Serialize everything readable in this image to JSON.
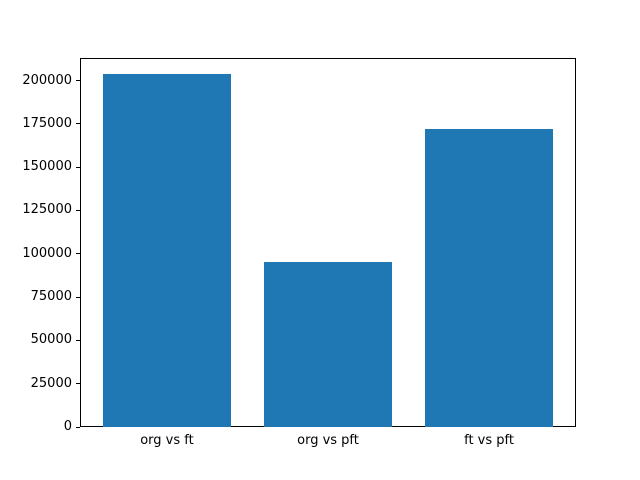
{
  "colors": {
    "bar": "#1f77b4",
    "axis": "#000000",
    "background": "#ffffff",
    "text": "#000000"
  },
  "chart_data": {
    "type": "bar",
    "categories": [
      "org vs ft",
      "org vs pft",
      "ft vs pft"
    ],
    "values": [
      204000,
      95000,
      172000
    ],
    "title": "",
    "xlabel": "",
    "ylabel": "",
    "yticks": [
      0,
      25000,
      50000,
      75000,
      100000,
      125000,
      150000,
      175000,
      200000
    ],
    "ytick_labels": [
      "0",
      "25000",
      "50000",
      "75000",
      "100000",
      "125000",
      "150000",
      "175000",
      "200000"
    ],
    "ylim": [
      0,
      213000
    ],
    "xlim": [
      -0.54,
      2.54
    ],
    "bar_width": 0.8,
    "grid": false,
    "legend": "none"
  }
}
